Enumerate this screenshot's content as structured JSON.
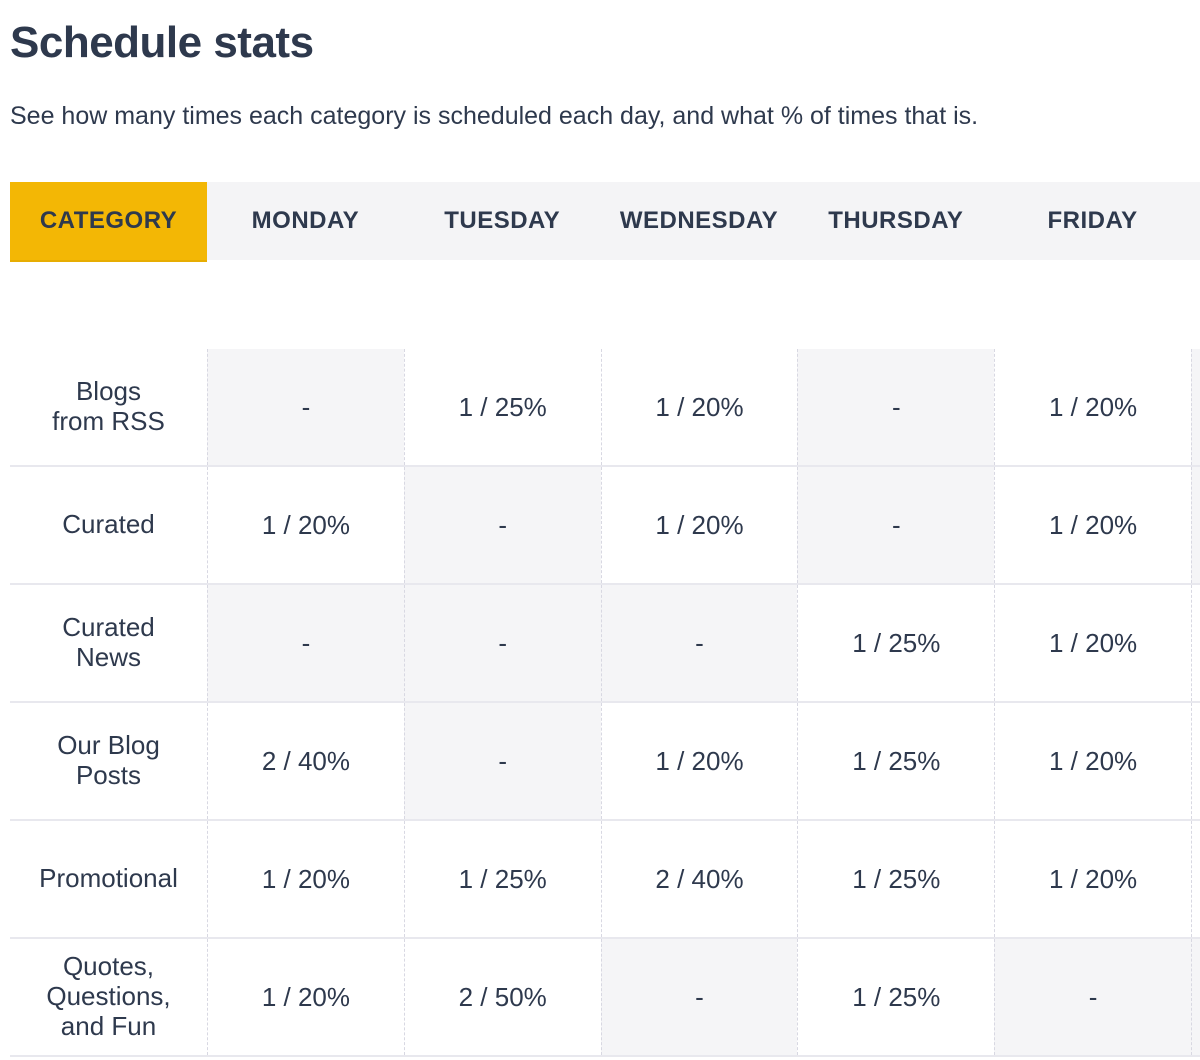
{
  "page": {
    "title": "Schedule stats",
    "subtitle": "See how many times each category is scheduled each day, and what % of times that is."
  },
  "colors": {
    "accent_yellow": "#F3B705",
    "dark_text": "#2E394D",
    "header_bg": "#F4F4F6",
    "empty_cell_bg": "#F5F5F7",
    "row_border": "#E8E8EE",
    "col_border": "#D8D8E2"
  },
  "table": {
    "columns": [
      "CATEGORY",
      "MONDAY",
      "TUESDAY",
      "WEDNESDAY",
      "THURSDAY",
      "FRIDAY"
    ],
    "empty_marker": "-",
    "rows": [
      {
        "category_lines": [
          "Blogs",
          "from RSS"
        ],
        "values": [
          "-",
          "1 / 25%",
          "1 / 20%",
          "-",
          "1 / 20%"
        ],
        "saturday_partial": "empty"
      },
      {
        "category_lines": [
          "Curated"
        ],
        "values": [
          "1 / 20%",
          "-",
          "1 / 20%",
          "-",
          "1 / 20%"
        ],
        "saturday_partial": "empty"
      },
      {
        "category_lines": [
          "Curated",
          "News"
        ],
        "values": [
          "-",
          "-",
          "-",
          "1 / 25%",
          "1 / 20%"
        ],
        "saturday_partial": "filled"
      },
      {
        "category_lines": [
          "Our Blog",
          "Posts"
        ],
        "values": [
          "2 / 40%",
          "-",
          "1 / 20%",
          "1 / 25%",
          "1 / 20%"
        ],
        "saturday_partial": "filled"
      },
      {
        "category_lines": [
          "Promotional"
        ],
        "values": [
          "1 / 20%",
          "1 / 25%",
          "2 / 40%",
          "1 / 25%",
          "1 / 20%"
        ],
        "saturday_partial": "filled"
      },
      {
        "category_lines": [
          "Quotes,",
          "Questions,",
          "and Fun"
        ],
        "values": [
          "1 / 20%",
          "2 / 50%",
          "-",
          "1 / 25%",
          "-"
        ],
        "saturday_partial": "empty"
      }
    ]
  }
}
